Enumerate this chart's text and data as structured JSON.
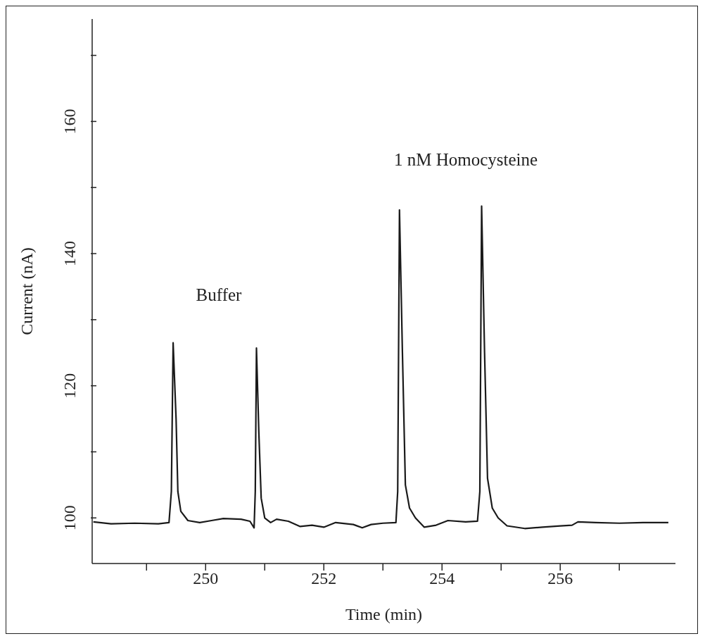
{
  "chart_data": {
    "type": "line",
    "xlabel": "Time (min)",
    "ylabel": "Current (nA)",
    "x": [
      248.1,
      248.4,
      248.8,
      249.2,
      249.38,
      249.42,
      249.45,
      249.5,
      249.53,
      249.58,
      249.7,
      249.9,
      250.1,
      250.3,
      250.6,
      250.75,
      250.82,
      250.84,
      250.86,
      250.9,
      250.94,
      251.0,
      251.1,
      251.2,
      251.4,
      251.6,
      251.8,
      252.0,
      252.2,
      252.5,
      252.65,
      252.8,
      253.0,
      253.22,
      253.25,
      253.28,
      253.33,
      253.38,
      253.45,
      253.55,
      253.7,
      253.9,
      254.1,
      254.4,
      254.6,
      254.64,
      254.67,
      254.72,
      254.77,
      254.85,
      254.95,
      255.1,
      255.4,
      255.7,
      256.0,
      256.2,
      256.3,
      256.6,
      257.0,
      257.4,
      257.83
    ],
    "series": [
      {
        "color": "#1a1a1a",
        "values": [
          99.4,
          99.1,
          99.2,
          99.1,
          99.3,
          104,
          126.5,
          115,
          104,
          101,
          99.6,
          99.3,
          99.6,
          99.9,
          99.8,
          99.5,
          98.5,
          104,
          125.7,
          113,
          103,
          100,
          99.3,
          99.8,
          99.5,
          98.7,
          98.9,
          98.6,
          99.3,
          99.0,
          98.5,
          99.0,
          99.2,
          99.3,
          104,
          146.6,
          125,
          105,
          101.5,
          100,
          98.6,
          98.9,
          99.6,
          99.4,
          99.5,
          104,
          147.2,
          125,
          106,
          101.5,
          100,
          98.8,
          98.4,
          98.6,
          98.8,
          98.9,
          99.4,
          99.3,
          99.2,
          99.3,
          99.3
        ]
      }
    ],
    "xlim": [
      248.08,
      257.95
    ],
    "xticks": [
      {
        "value": 249,
        "label": null
      },
      250,
      {
        "value": 251,
        "label": null
      },
      252,
      {
        "value": 253,
        "label": null
      },
      254,
      {
        "value": 255,
        "label": null
      },
      256,
      {
        "value": 257,
        "label": null
      }
    ],
    "ylim": [
      93.1,
      175.5
    ],
    "yticks": [
      100,
      {
        "value": 110,
        "label": null
      },
      120,
      {
        "value": 130,
        "label": null
      },
      140,
      {
        "value": 150,
        "label": null
      },
      160,
      {
        "value": 170,
        "label": null
      }
    ],
    "annotations": [
      "Buffer",
      "1 nM Homocysteine"
    ],
    "grid": false,
    "legend": false,
    "marker": "none",
    "line_style": "solid"
  }
}
